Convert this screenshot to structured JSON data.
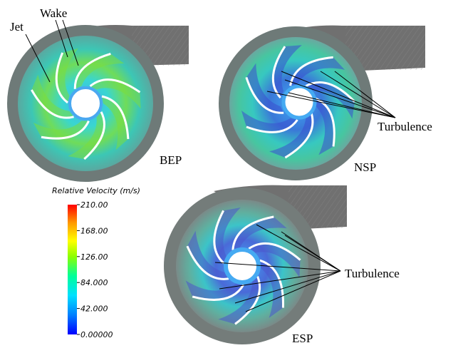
{
  "panels": [
    {
      "id": "bep",
      "label": "BEP"
    },
    {
      "id": "nsp",
      "label": "NSP"
    },
    {
      "id": "esp",
      "label": "ESP"
    }
  ],
  "annotations": {
    "jet": "Jet",
    "wake": "Wake",
    "turbulence_nsp": "Turbulence",
    "turbulence_esp": "Turbulence"
  },
  "colorbar": {
    "title": "Relative Velocity (m/s)",
    "ticks": [
      "210.00",
      "168.00",
      "126.00",
      "84.000",
      "42.000",
      "0.00000"
    ],
    "min": 0,
    "max": 210,
    "colors": [
      "#0000ff",
      "#00aaff",
      "#00ffff",
      "#00ff66",
      "#aaff00",
      "#ffff00",
      "#ffaa00",
      "#ff0000"
    ]
  },
  "palette": {
    "casing": "#6d6d6d",
    "casing_dark": "#555555",
    "flow_cyan": "#35c9c6",
    "flow_green": "#7fe04a",
    "blade_blue": "#3b5bd8",
    "hub_blue": "#3fa8f0"
  }
}
